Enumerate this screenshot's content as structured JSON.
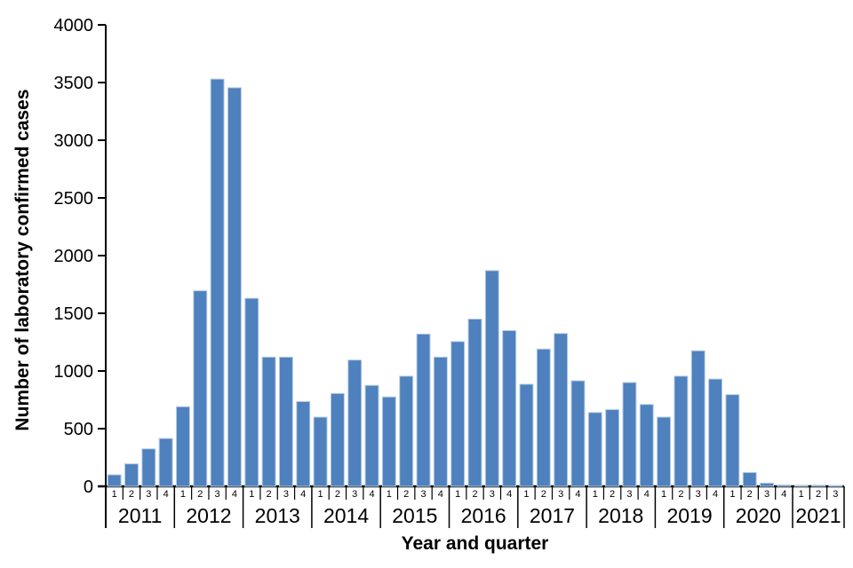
{
  "chart_data": {
    "type": "bar",
    "title": "",
    "xlabel": "Year and quarter",
    "ylabel": "Number of laboratory confirmed cases",
    "ylim": [
      0,
      4000
    ],
    "yticks": [
      0,
      500,
      1000,
      1500,
      2000,
      2500,
      3000,
      3500,
      4000
    ],
    "legend": "none",
    "grid": "off",
    "bar_color": "#4E81BD",
    "bar_border_color": "#B7CCE7",
    "axis_color": "#000000",
    "years": [
      {
        "year": "2011",
        "quarters": [
          "1",
          "2",
          "3",
          "4"
        ],
        "values": [
          100,
          195,
          325,
          415
        ]
      },
      {
        "year": "2012",
        "quarters": [
          "1",
          "2",
          "3",
          "4"
        ],
        "values": [
          690,
          1695,
          3530,
          3455
        ]
      },
      {
        "year": "2013",
        "quarters": [
          "1",
          "2",
          "3",
          "4"
        ],
        "values": [
          1630,
          1120,
          1120,
          735
        ]
      },
      {
        "year": "2014",
        "quarters": [
          "1",
          "2",
          "3",
          "4"
        ],
        "values": [
          600,
          805,
          1095,
          875
        ]
      },
      {
        "year": "2015",
        "quarters": [
          "1",
          "2",
          "3",
          "4"
        ],
        "values": [
          775,
          955,
          1320,
          1120
        ]
      },
      {
        "year": "2016",
        "quarters": [
          "1",
          "2",
          "3",
          "4"
        ],
        "values": [
          1255,
          1450,
          1870,
          1350
        ]
      },
      {
        "year": "2017",
        "quarters": [
          "1",
          "2",
          "3",
          "4"
        ],
        "values": [
          885,
          1190,
          1325,
          915
        ]
      },
      {
        "year": "2018",
        "quarters": [
          "1",
          "2",
          "3",
          "4"
        ],
        "values": [
          640,
          665,
          900,
          710
        ]
      },
      {
        "year": "2019",
        "quarters": [
          "1",
          "2",
          "3",
          "4"
        ],
        "values": [
          600,
          955,
          1175,
          930
        ]
      },
      {
        "year": "2020",
        "quarters": [
          "1",
          "2",
          "3",
          "4"
        ],
        "values": [
          795,
          120,
          28,
          12
        ]
      },
      {
        "year": "2021",
        "quarters": [
          "1",
          "2",
          "3"
        ],
        "values": [
          6,
          10,
          8
        ]
      }
    ]
  }
}
